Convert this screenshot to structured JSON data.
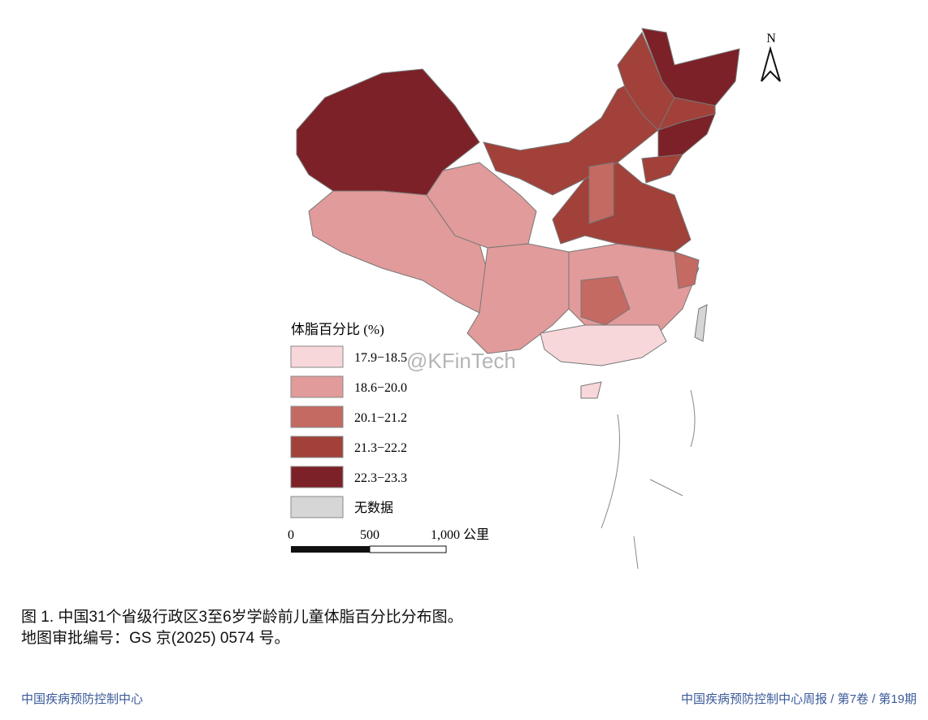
{
  "map": {
    "north_label": "N",
    "legend": {
      "title": "体脂百分比 (%)",
      "items": [
        {
          "label": "17.9−18.5",
          "color": "#f8d7da"
        },
        {
          "label": "18.6−20.0",
          "color": "#e19b9a"
        },
        {
          "label": "20.1−21.2",
          "color": "#c46a62"
        },
        {
          "label": "21.3−22.2",
          "color": "#a1413a"
        },
        {
          "label": "22.3−23.3",
          "color": "#7c2127"
        },
        {
          "label": "无数据",
          "color": "#d6d6d6"
        }
      ]
    },
    "scale_bar": {
      "labels": [
        "0",
        "500",
        "1,000 公里"
      ]
    },
    "watermark": "@KFinTech"
  },
  "caption": {
    "line1": "图 1. 中国31个省级行政区3至6岁学龄前儿童体脂百分比分布图。",
    "line2": "地图审批编号：GS 京(2025) 0574 号。"
  },
  "footer": {
    "left": "中国疾病预防控制中心",
    "right": "中国疾病预防控制中心周报 / 第7卷 / 第19期"
  }
}
